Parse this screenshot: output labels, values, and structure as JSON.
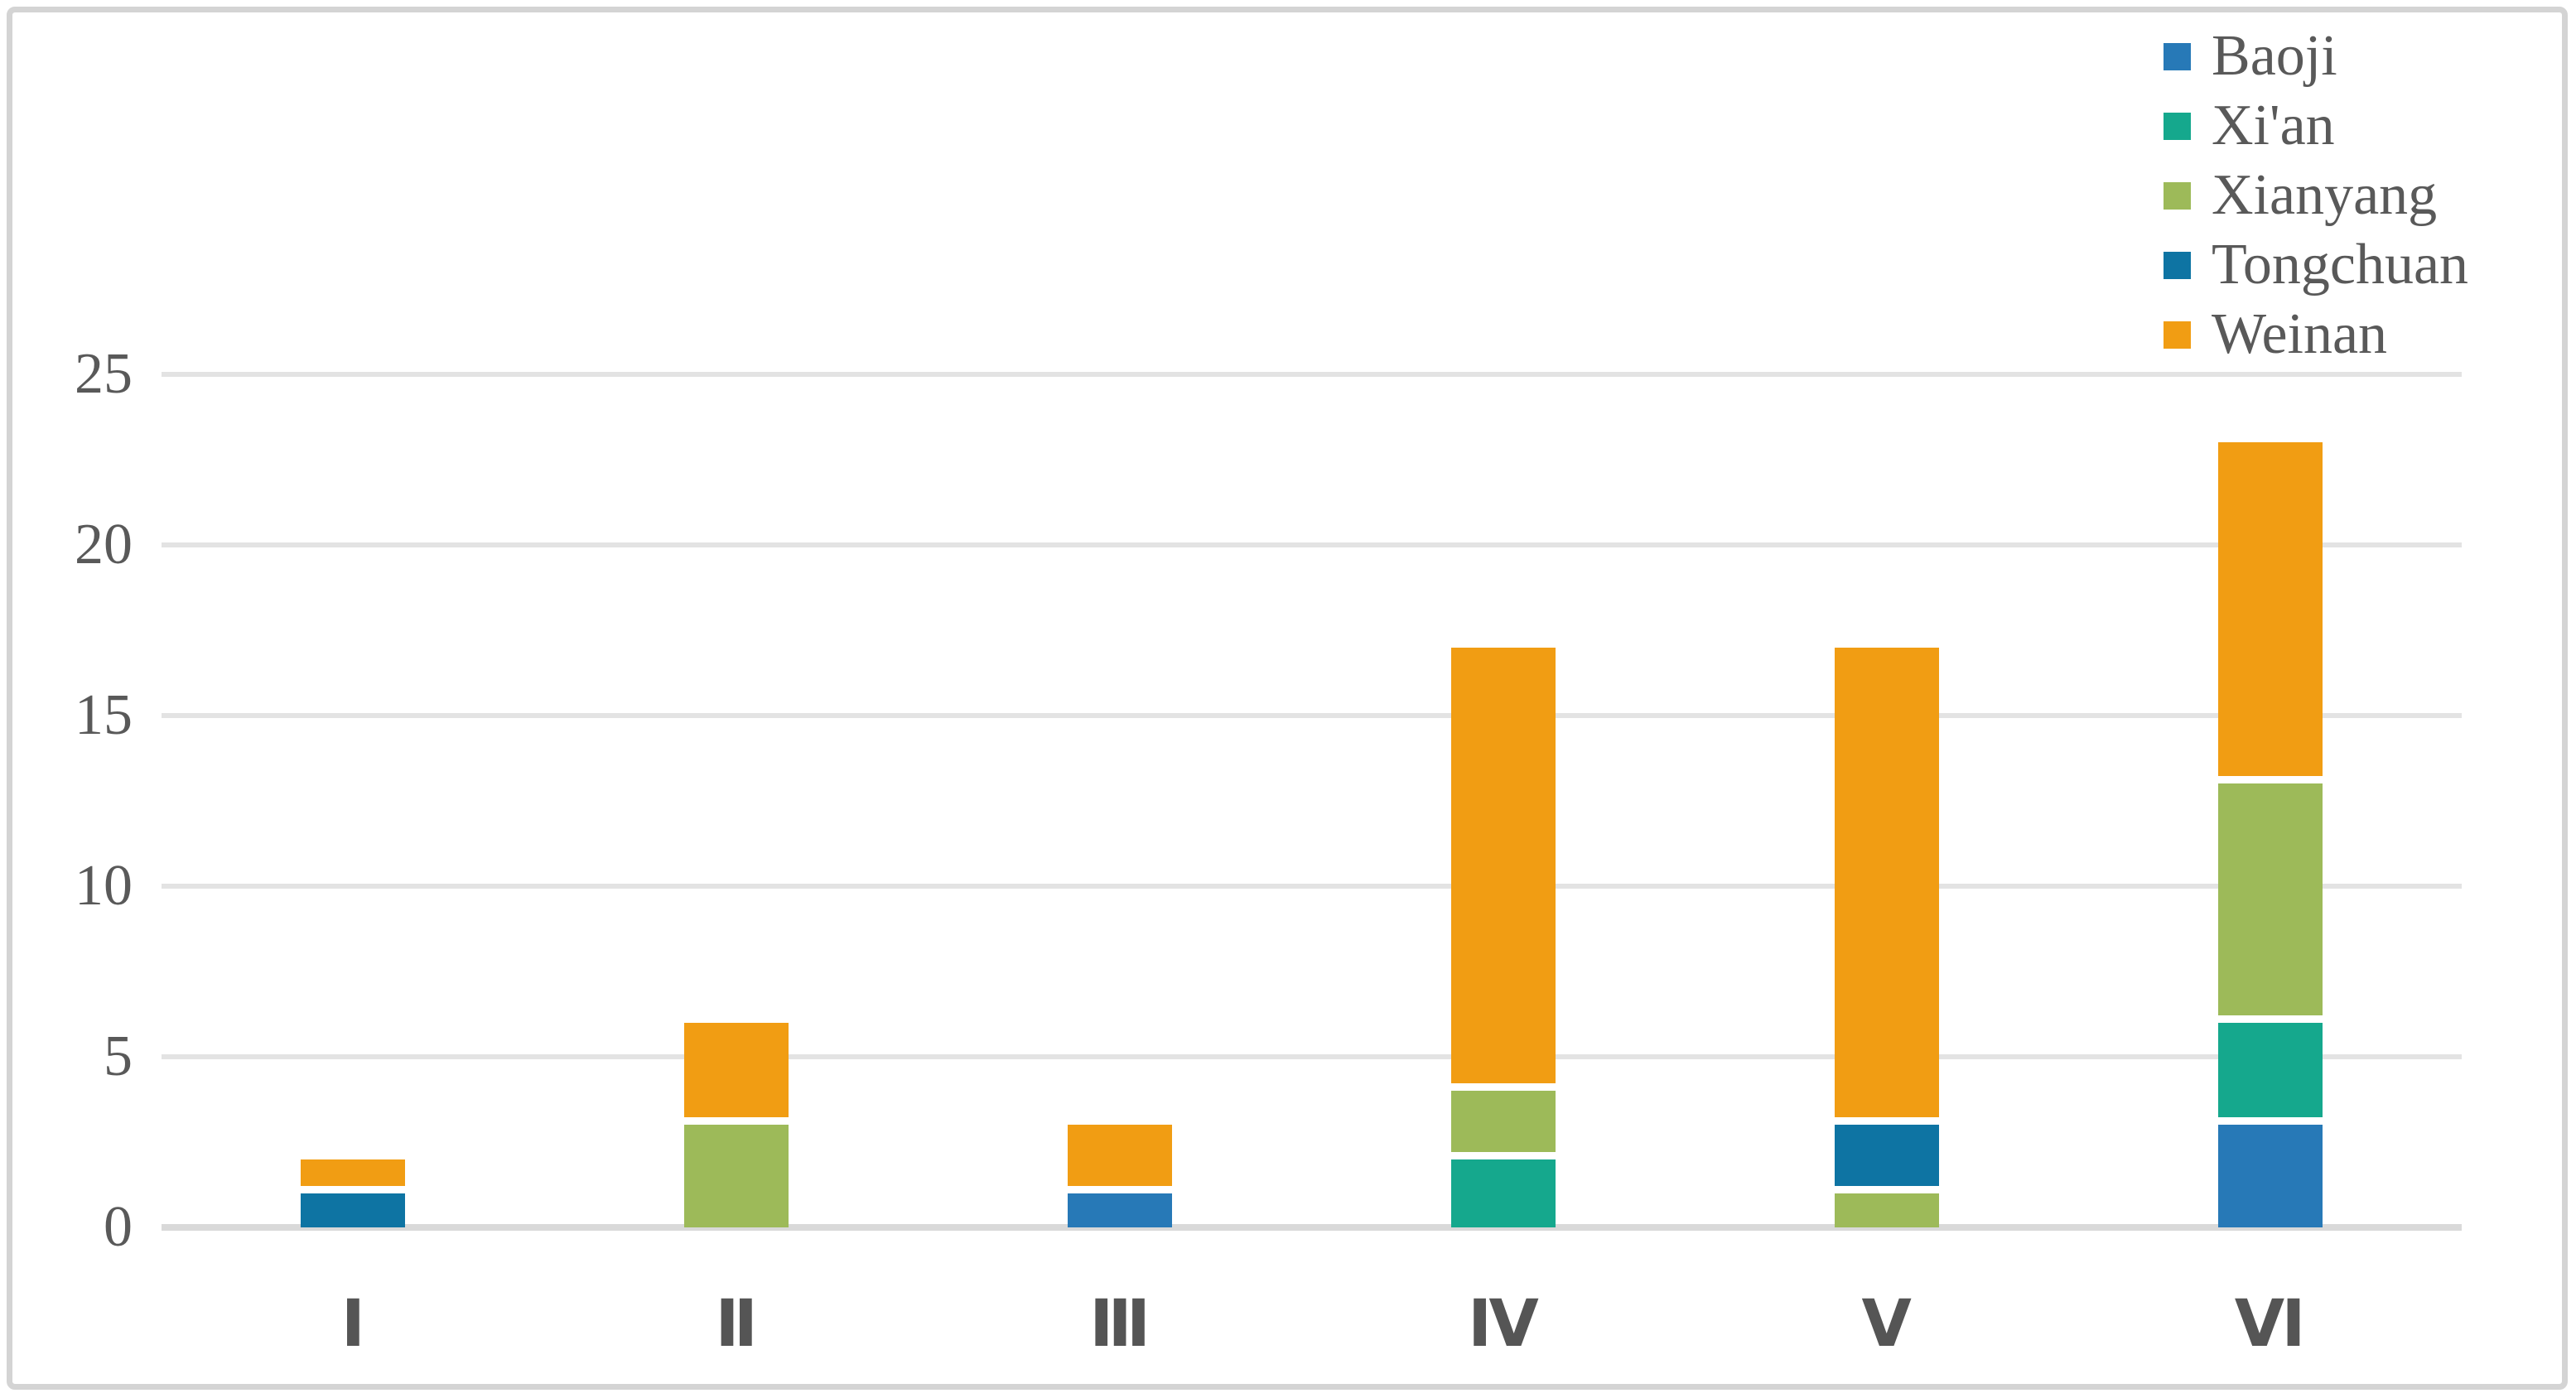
{
  "chart_data": {
    "type": "bar",
    "stacked": true,
    "title": "",
    "xlabel": "",
    "ylabel": "",
    "categories": [
      "Ⅰ",
      "Ⅱ",
      "Ⅲ",
      "Ⅳ",
      "Ⅴ",
      "Ⅵ"
    ],
    "series": [
      {
        "name": "Baoji",
        "color": "#2779b7",
        "values": [
          0,
          0,
          1,
          0,
          0,
          3
        ]
      },
      {
        "name": "Xi'an",
        "color": "#15a88d",
        "values": [
          0,
          0,
          0,
          2,
          0,
          3
        ]
      },
      {
        "name": "Xianyang",
        "color": "#9dba59",
        "values": [
          0,
          3,
          0,
          2,
          1,
          7
        ]
      },
      {
        "name": "Tongchuan",
        "color": "#0e74a3",
        "values": [
          1,
          0,
          0,
          0,
          2,
          0
        ]
      },
      {
        "name": "Weinan",
        "color": "#f19d13",
        "values": [
          1,
          3,
          2,
          13,
          14,
          10
        ]
      }
    ],
    "bar_totals": [
      2,
      6,
      3,
      17,
      17,
      23
    ],
    "ylim": [
      0,
      25
    ],
    "yticks": [
      0,
      5,
      10,
      15,
      20,
      25
    ],
    "grid": true,
    "legend_position": "top-right",
    "legend_order": [
      "Baoji",
      "Xi'an",
      "Xianyang",
      "Tongchuan",
      "Weinan"
    ]
  },
  "style": {
    "text_color": "#595959",
    "gridline_color": "#e3e3e3",
    "baseline_color": "#d9d9d9",
    "frame_border_color": "#d4d4d4",
    "segment_gap_color": "#ffffff"
  }
}
